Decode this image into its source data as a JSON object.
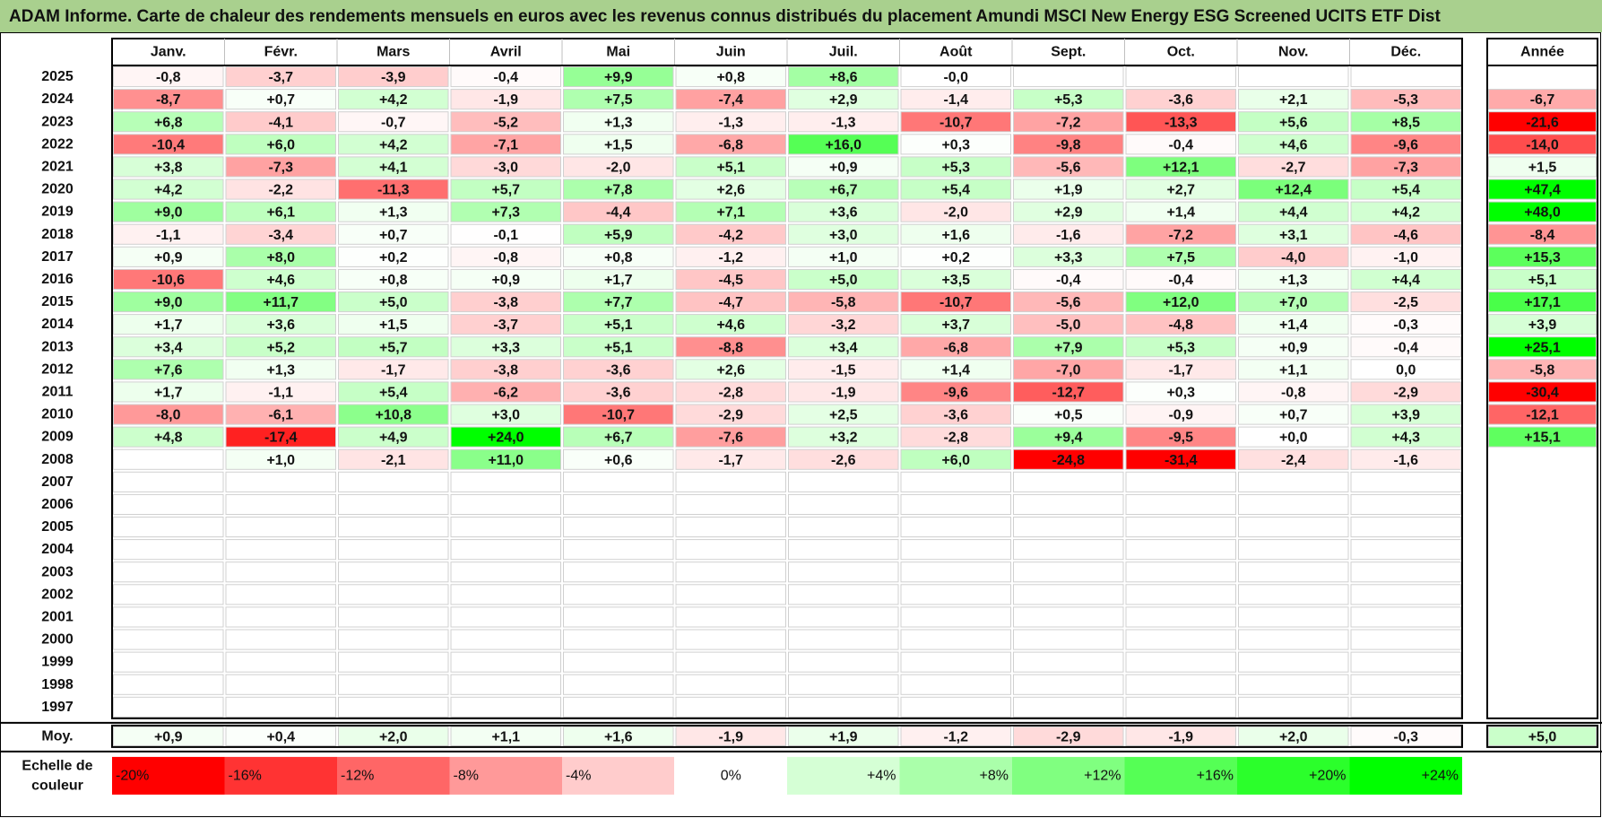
{
  "chart_data": {
    "type": "heatmap",
    "title": "ADAM Informe. Carte de chaleur des rendements mensuels en euros avec les revenus connus distribués du placement Amundi MSCI New Energy ESG Screened UCITS ETF Dist",
    "months": [
      "Janv.",
      "Févr.",
      "Mars",
      "Avril",
      "Mai",
      "Juin",
      "Juil.",
      "Août",
      "Sept.",
      "Oct.",
      "Nov.",
      "Déc."
    ],
    "year_header": "Année",
    "rows": [
      {
        "year": "2025",
        "values": [
          "-0,8",
          "-3,7",
          "-3,9",
          "-0,4",
          "+9,9",
          "+0,8",
          "+8,6",
          "-0,0",
          "",
          "",
          "",
          ""
        ],
        "annual": ""
      },
      {
        "year": "2024",
        "values": [
          "-8,7",
          "+0,7",
          "+4,2",
          "-1,9",
          "+7,5",
          "-7,4",
          "+2,9",
          "-1,4",
          "+5,3",
          "-3,6",
          "+2,1",
          "-5,3"
        ],
        "annual": "-6,7"
      },
      {
        "year": "2023",
        "values": [
          "+6,8",
          "-4,1",
          "-0,7",
          "-5,2",
          "+1,3",
          "-1,3",
          "-1,3",
          "-10,7",
          "-7,2",
          "-13,3",
          "+5,6",
          "+8,5"
        ],
        "annual": "-21,6"
      },
      {
        "year": "2022",
        "values": [
          "-10,4",
          "+6,0",
          "+4,2",
          "-7,1",
          "+1,5",
          "-6,8",
          "+16,0",
          "+0,3",
          "-9,8",
          "-0,4",
          "+4,6",
          "-9,6"
        ],
        "annual": "-14,0"
      },
      {
        "year": "2021",
        "values": [
          "+3,8",
          "-7,3",
          "+4,1",
          "-3,0",
          "-2,0",
          "+5,1",
          "+0,9",
          "+5,3",
          "-5,6",
          "+12,1",
          "-2,7",
          "-7,3"
        ],
        "annual": "+1,5"
      },
      {
        "year": "2020",
        "values": [
          "+4,2",
          "-2,2",
          "-11,3",
          "+5,7",
          "+7,8",
          "+2,6",
          "+6,7",
          "+5,4",
          "+1,9",
          "+2,7",
          "+12,4",
          "+5,4"
        ],
        "annual": "+47,4"
      },
      {
        "year": "2019",
        "values": [
          "+9,0",
          "+6,1",
          "+1,3",
          "+7,3",
          "-4,4",
          "+7,1",
          "+3,6",
          "-2,0",
          "+2,9",
          "+1,4",
          "+4,4",
          "+4,2"
        ],
        "annual": "+48,0"
      },
      {
        "year": "2018",
        "values": [
          "-1,1",
          "-3,4",
          "+0,7",
          "-0,1",
          "+5,9",
          "-4,2",
          "+3,0",
          "+1,6",
          "-1,6",
          "-7,2",
          "+3,1",
          "-4,6"
        ],
        "annual": "-8,4"
      },
      {
        "year": "2017",
        "values": [
          "+0,9",
          "+8,0",
          "+0,2",
          "-0,8",
          "+0,8",
          "-1,2",
          "+1,0",
          "+0,2",
          "+3,3",
          "+7,5",
          "-4,0",
          "-1,0"
        ],
        "annual": "+15,3"
      },
      {
        "year": "2016",
        "values": [
          "-10,6",
          "+4,6",
          "+0,8",
          "+0,9",
          "+1,7",
          "-4,5",
          "+5,0",
          "+3,5",
          "-0,4",
          "-0,4",
          "+1,3",
          "+4,4"
        ],
        "annual": "+5,1"
      },
      {
        "year": "2015",
        "values": [
          "+9,0",
          "+11,7",
          "+5,0",
          "-3,8",
          "+7,7",
          "-4,7",
          "-5,8",
          "-10,7",
          "-5,6",
          "+12,0",
          "+7,0",
          "-2,5"
        ],
        "annual": "+17,1"
      },
      {
        "year": "2014",
        "values": [
          "+1,7",
          "+3,6",
          "+1,5",
          "-3,7",
          "+5,1",
          "+4,6",
          "-3,2",
          "+3,7",
          "-5,0",
          "-4,8",
          "+1,4",
          "-0,3"
        ],
        "annual": "+3,9"
      },
      {
        "year": "2013",
        "values": [
          "+3,4",
          "+5,2",
          "+5,7",
          "+3,3",
          "+5,1",
          "-8,8",
          "+3,4",
          "-6,8",
          "+7,9",
          "+5,3",
          "+0,9",
          "-0,4"
        ],
        "annual": "+25,1"
      },
      {
        "year": "2012",
        "values": [
          "+7,6",
          "+1,3",
          "-1,7",
          "-3,8",
          "-3,6",
          "+2,6",
          "-1,5",
          "+1,4",
          "-7,0",
          "-1,7",
          "+1,1",
          "0,0"
        ],
        "annual": "-5,8"
      },
      {
        "year": "2011",
        "values": [
          "+1,7",
          "-1,1",
          "+5,4",
          "-6,2",
          "-3,6",
          "-2,8",
          "-1,9",
          "-9,6",
          "-12,7",
          "+0,3",
          "-0,8",
          "-2,9"
        ],
        "annual": "-30,4"
      },
      {
        "year": "2010",
        "values": [
          "-8,0",
          "-6,1",
          "+10,8",
          "+3,0",
          "-10,7",
          "-2,9",
          "+2,5",
          "-3,6",
          "+0,5",
          "-0,9",
          "+0,7",
          "+3,9"
        ],
        "annual": "-12,1"
      },
      {
        "year": "2009",
        "values": [
          "+4,8",
          "-17,4",
          "+4,9",
          "+24,0",
          "+6,7",
          "-7,6",
          "+3,2",
          "-2,8",
          "+9,4",
          "-9,5",
          "+0,0",
          "+4,3"
        ],
        "annual": "+15,1"
      },
      {
        "year": "2008",
        "values": [
          "",
          "+1,0",
          "-2,1",
          "+11,0",
          "+0,6",
          "-1,7",
          "-2,6",
          "+6,0",
          "-24,8",
          "-31,4",
          "-2,4",
          "-1,6"
        ],
        "annual": ""
      },
      {
        "year": "2007",
        "values": [
          "",
          "",
          "",
          "",
          "",
          "",
          "",
          "",
          "",
          "",
          "",
          ""
        ],
        "annual": ""
      },
      {
        "year": "2006",
        "values": [
          "",
          "",
          "",
          "",
          "",
          "",
          "",
          "",
          "",
          "",
          "",
          ""
        ],
        "annual": ""
      },
      {
        "year": "2005",
        "values": [
          "",
          "",
          "",
          "",
          "",
          "",
          "",
          "",
          "",
          "",
          "",
          ""
        ],
        "annual": ""
      },
      {
        "year": "2004",
        "values": [
          "",
          "",
          "",
          "",
          "",
          "",
          "",
          "",
          "",
          "",
          "",
          ""
        ],
        "annual": ""
      },
      {
        "year": "2003",
        "values": [
          "",
          "",
          "",
          "",
          "",
          "",
          "",
          "",
          "",
          "",
          "",
          ""
        ],
        "annual": ""
      },
      {
        "year": "2002",
        "values": [
          "",
          "",
          "",
          "",
          "",
          "",
          "",
          "",
          "",
          "",
          "",
          ""
        ],
        "annual": ""
      },
      {
        "year": "2001",
        "values": [
          "",
          "",
          "",
          "",
          "",
          "",
          "",
          "",
          "",
          "",
          "",
          ""
        ],
        "annual": ""
      },
      {
        "year": "2000",
        "values": [
          "",
          "",
          "",
          "",
          "",
          "",
          "",
          "",
          "",
          "",
          "",
          ""
        ],
        "annual": ""
      },
      {
        "year": "1999",
        "values": [
          "",
          "",
          "",
          "",
          "",
          "",
          "",
          "",
          "",
          "",
          "",
          ""
        ],
        "annual": ""
      },
      {
        "year": "1998",
        "values": [
          "",
          "",
          "",
          "",
          "",
          "",
          "",
          "",
          "",
          "",
          "",
          ""
        ],
        "annual": ""
      },
      {
        "year": "1997",
        "values": [
          "",
          "",
          "",
          "",
          "",
          "",
          "",
          "",
          "",
          "",
          "",
          ""
        ],
        "annual": ""
      }
    ],
    "average": {
      "label": "Moy.",
      "values": [
        "+0,9",
        "+0,4",
        "+2,0",
        "+1,1",
        "+1,6",
        "-1,9",
        "+1,9",
        "-1,2",
        "-2,9",
        "-1,9",
        "+2,0",
        "-0,3"
      ],
      "annual": "+5,0"
    },
    "scale": {
      "label_line1": "Echelle de",
      "label_line2": "couleur",
      "items": [
        "-20%",
        "-16%",
        "-12%",
        "-8%",
        "-4%",
        "0%",
        "+4%",
        "+8%",
        "+12%",
        "+16%",
        "+20%",
        "+24%"
      ],
      "values": [
        -20,
        -16,
        -12,
        -8,
        -4,
        0,
        4,
        8,
        12,
        16,
        20,
        24
      ]
    },
    "colors": {
      "title_bg": "#a9d08e",
      "negative": "#ff0000",
      "positive": "#00ff00",
      "neutral": "#ffffff"
    }
  }
}
